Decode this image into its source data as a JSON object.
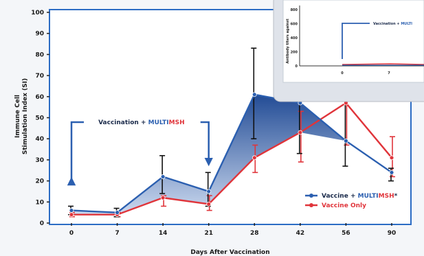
{
  "chart_data": [
    {
      "type": "area",
      "xlabel": "Days After Vaccination",
      "ylabel": "Immune Cell Stimulation Index (SI)",
      "ylim": [
        0,
        100
      ],
      "y_ticks": [
        "0",
        "10",
        "20",
        "30",
        "40",
        "50",
        "60",
        "70",
        "80",
        "90",
        "100"
      ],
      "categories": [
        "0",
        "7",
        "14",
        "21",
        "28",
        "42",
        "56",
        "90"
      ],
      "grid": false,
      "legend_position": "bottom-right",
      "series": [
        {
          "name_prefix": "Vaccine + ",
          "name_brand_a": "MULTI",
          "name_brand_b": "MSH",
          "name_suffix": "*",
          "color": "#2b5fb0",
          "values": [
            6,
            5,
            22,
            15,
            61,
            57,
            39,
            24
          ],
          "error_high": [
            8,
            7,
            32,
            24,
            83,
            63,
            60,
            26
          ],
          "error_low": [
            4,
            3,
            14,
            8,
            40,
            33,
            27,
            20
          ]
        },
        {
          "name": "Vaccine Only",
          "color": "#e0343a",
          "values": [
            4,
            4,
            12,
            9,
            31,
            43,
            57,
            31
          ],
          "error_high": [
            5,
            5,
            13,
            13,
            37,
            53,
            63,
            41
          ],
          "error_low": [
            3,
            3,
            8,
            6,
            24,
            29,
            37,
            22
          ]
        }
      ],
      "annotation": {
        "prefix": "Vaccination + ",
        "brand_a": "MULTI",
        "brand_b": "MSH",
        "from_x": "0",
        "to_x": "21"
      }
    },
    {
      "type": "line",
      "ylabel": "Antibody titers against",
      "y_ticks": [
        "800",
        "600",
        "400",
        "200",
        "0"
      ],
      "categories": [
        "0",
        "7"
      ],
      "annotation": {
        "prefix": "Vaccination + ",
        "brand_a": "MULTI"
      }
    }
  ]
}
